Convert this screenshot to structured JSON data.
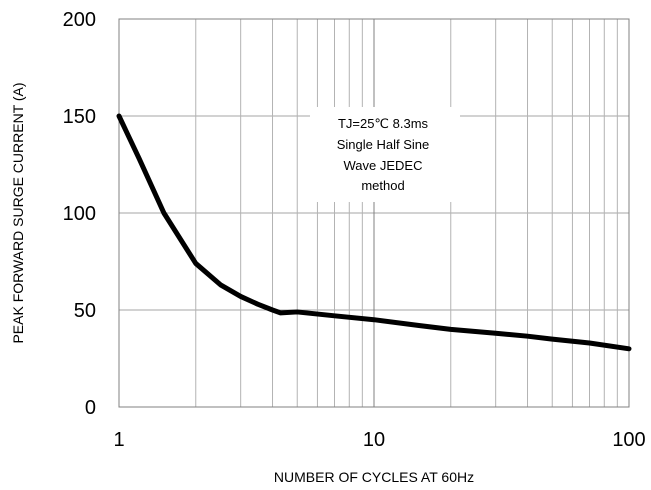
{
  "chart_data": {
    "type": "line",
    "xlabel": "NUMBER OF CYCLES AT 60Hz",
    "ylabel": "PEAK FORWARD SURGE CURRENT (A)",
    "x_scale": "log",
    "xlim": [
      1,
      100
    ],
    "ylim": [
      0,
      200
    ],
    "x_ticks": [
      1,
      10,
      100
    ],
    "x_tick_labels": [
      "1",
      "10",
      "100"
    ],
    "y_ticks": [
      0,
      50,
      100,
      150,
      200
    ],
    "y_tick_labels": [
      "0",
      "50",
      "100",
      "150",
      "200"
    ],
    "grid": true,
    "annotation": [
      "TJ=25℃ 8.3ms",
      "Single Half  Sine",
      "Wave JEDEC",
      "method"
    ],
    "series": [
      {
        "x": [
          1,
          1.2,
          1.5,
          2,
          2.5,
          3,
          3.5,
          4,
          4.3,
          5,
          7,
          10,
          15,
          20,
          30,
          40,
          50,
          70,
          100
        ],
        "y": [
          150,
          128,
          100,
          74,
          63,
          57,
          53,
          50,
          48.5,
          49,
          47,
          45,
          42,
          40,
          38,
          36.5,
          35,
          33,
          30
        ]
      }
    ]
  }
}
